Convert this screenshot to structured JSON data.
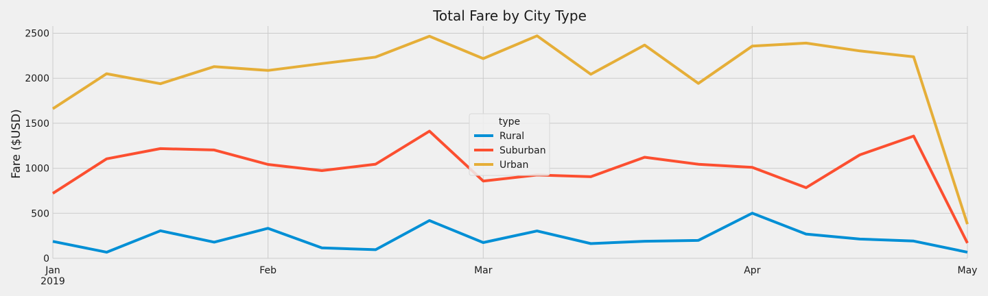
{
  "chart_data": {
    "type": "line",
    "title": "Total Fare by City Type",
    "xlabel": "",
    "ylabel": "Fare ($USD)",
    "ylim": [
      0,
      2580
    ],
    "yticks": [
      0,
      500,
      1000,
      1500,
      2000,
      2500
    ],
    "x": [
      "2019-01-06",
      "2019-01-13",
      "2019-01-20",
      "2019-01-27",
      "2019-02-03",
      "2019-02-10",
      "2019-02-17",
      "2019-02-24",
      "2019-03-03",
      "2019-03-10",
      "2019-03-17",
      "2019-03-24",
      "2019-03-31",
      "2019-04-07",
      "2019-04-14",
      "2019-04-21",
      "2019-04-28",
      "2019-05-05"
    ],
    "xlim": [
      "2019-01-06",
      "2019-05-05"
    ],
    "xticks": [
      {
        "date": "2019-01-06",
        "label": "Jan",
        "sublabel": "2019"
      },
      {
        "date": "2019-02-03",
        "label": "Feb",
        "sublabel": ""
      },
      {
        "date": "2019-03-03",
        "label": "Mar",
        "sublabel": ""
      },
      {
        "date": "2019-04-07",
        "label": "Apr",
        "sublabel": ""
      },
      {
        "date": "2019-05-05",
        "label": "May",
        "sublabel": ""
      }
    ],
    "grid": true,
    "legend": {
      "title": "type",
      "placement": "center"
    },
    "series": [
      {
        "name": "Rural",
        "color": "#008fd5",
        "values": [
          187.92,
          67.65,
          306.0,
          179.69,
          333.08,
          115.8,
          95.82,
          419.06,
          175.14,
          303.94,
          163.39,
          189.76,
          199.42,
          501.24,
          269.79,
          214.14,
          191.85,
          67.6
        ]
      },
      {
        "name": "Suburban",
        "color": "#fc4f30",
        "values": [
          721.6,
          1105.13,
          1218.2,
          1203.28,
          1042.79,
          974.34,
          1045.5,
          1412.74,
          858.46,
          925.27,
          906.2,
          1122.2,
          1045.06,
          1010.73,
          784.82,
          1149.27,
          1357.75,
          169.65
        ]
      },
      {
        "name": "Urban",
        "color": "#e5ae38",
        "values": [
          1661.68,
          2050.43,
          1939.02,
          2129.51,
          2086.94,
          2162.64,
          2235.07,
          2466.29,
          2218.2,
          2470.93,
          2044.42,
          2368.37,
          1942.77,
          2356.7,
          2390.72,
          2303.8,
          2238.29,
          380.06
        ]
      }
    ]
  }
}
